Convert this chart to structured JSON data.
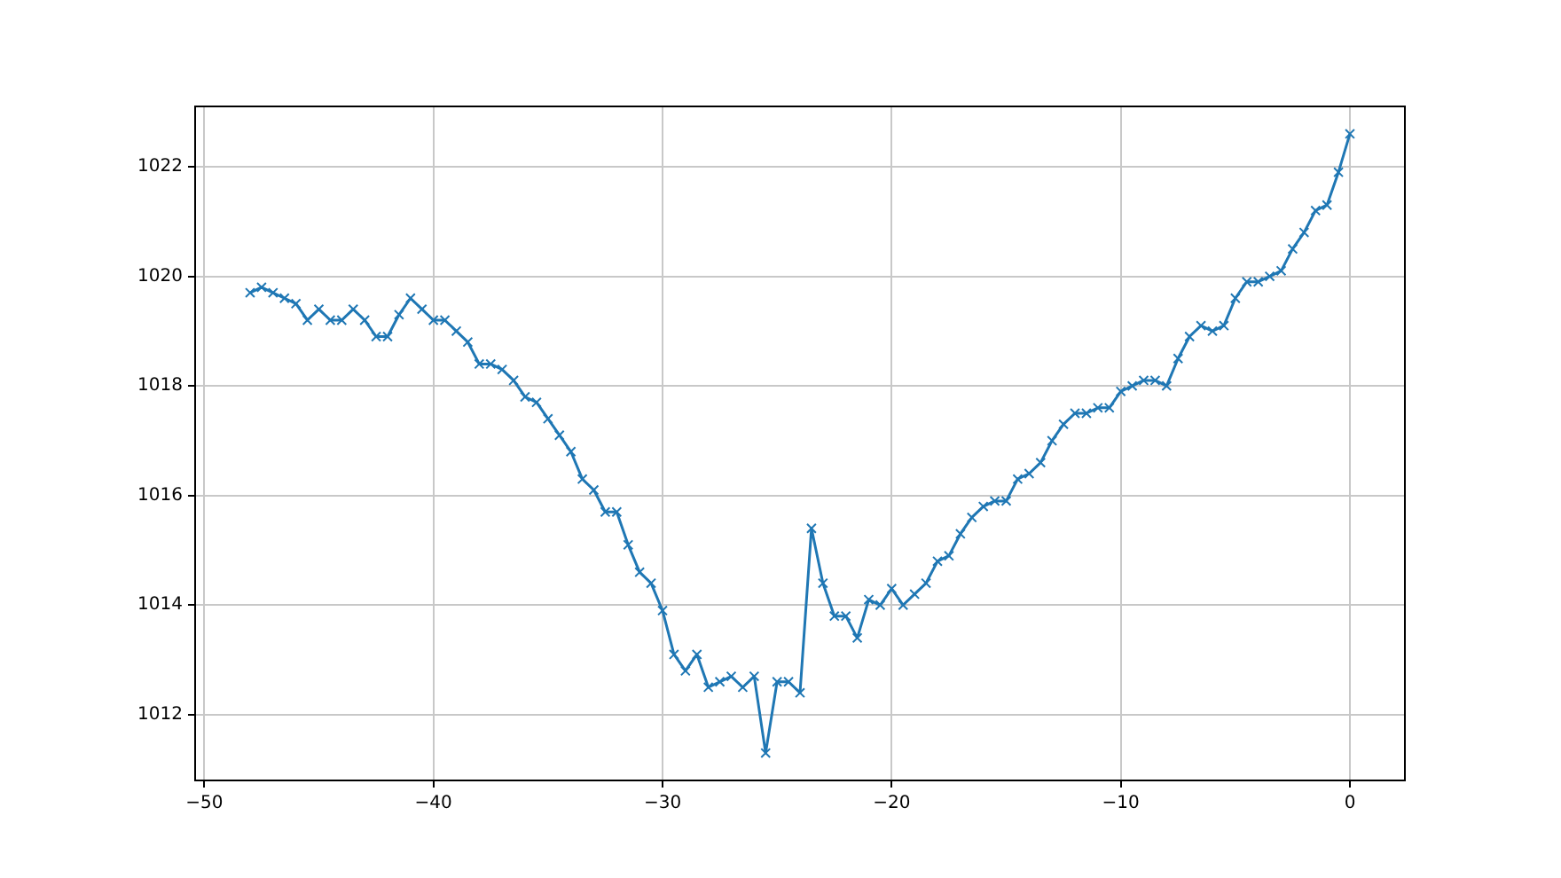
{
  "chart_data": {
    "type": "line",
    "x": [
      -48,
      -47.5,
      -47,
      -46.5,
      -46,
      -45.5,
      -45,
      -44.5,
      -44,
      -43.5,
      -43,
      -42.5,
      -42,
      -41.5,
      -41,
      -40.5,
      -40,
      -39.5,
      -39,
      -38.5,
      -38,
      -37.5,
      -37,
      -36.5,
      -36,
      -35.5,
      -35,
      -34.5,
      -34,
      -33.5,
      -33,
      -32.5,
      -32,
      -31.5,
      -31,
      -30.5,
      -30,
      -29.5,
      -29,
      -28.5,
      -28,
      -27.5,
      -27,
      -26.5,
      -26,
      -25.5,
      -25,
      -24.5,
      -24,
      -23.5,
      -23,
      -22.5,
      -22,
      -21.5,
      -21,
      -20.5,
      -20,
      -19.5,
      -19,
      -18.5,
      -18,
      -17.5,
      -17,
      -16.5,
      -16,
      -15.5,
      -15,
      -14.5,
      -14,
      -13.5,
      -13,
      -12.5,
      -12,
      -11.5,
      -11,
      -10.5,
      -10,
      -9.5,
      -9,
      -8.5,
      -8,
      -7.5,
      -7,
      -6.5,
      -6,
      -5.5,
      -5,
      -4.5,
      -4,
      -3.5,
      -3,
      -2.5,
      -2,
      -1.5,
      -1,
      -0.5,
      0
    ],
    "series": [
      {
        "color": "#1f77b4",
        "values": [
          1019.7,
          1019.8,
          1019.7,
          1019.6,
          1019.5,
          1019.2,
          1019.4,
          1019.2,
          1019.2,
          1019.4,
          1019.2,
          1018.9,
          1018.9,
          1019.3,
          1019.6,
          1019.4,
          1019.2,
          1019.2,
          1019.0,
          1018.8,
          1018.4,
          1018.4,
          1018.3,
          1018.1,
          1017.8,
          1017.7,
          1017.4,
          1017.1,
          1016.8,
          1016.3,
          1016.1,
          1015.7,
          1015.7,
          1015.1,
          1014.6,
          1014.4,
          1013.9,
          1013.1,
          1012.8,
          1013.1,
          1012.5,
          1012.6,
          1012.7,
          1012.5,
          1012.7,
          1011.3,
          1012.6,
          1012.6,
          1012.4,
          1015.4,
          1014.4,
          1013.8,
          1013.8,
          1013.4,
          1014.1,
          1014.0,
          1014.3,
          1014.0,
          1014.2,
          1014.4,
          1014.8,
          1014.9,
          1015.3,
          1015.6,
          1015.8,
          1015.9,
          1015.9,
          1016.3,
          1016.4,
          1016.6,
          1017.0,
          1017.3,
          1017.5,
          1017.5,
          1017.6,
          1017.6,
          1017.9,
          1018.0,
          1018.1,
          1018.1,
          1018.0,
          1018.5,
          1018.9,
          1019.1,
          1019.0,
          1019.1,
          1019.6,
          1019.9,
          1019.9,
          1020.0,
          1020.1,
          1020.5,
          1020.8,
          1021.2,
          1021.3,
          1021.9,
          1022.6
        ]
      }
    ],
    "xlim": [
      -50.4,
      2.4
    ],
    "ylim": [
      1010.8,
      1023.1
    ],
    "xticks": [
      {
        "value": -50,
        "label": "−50"
      },
      {
        "value": -40,
        "label": "−40"
      },
      {
        "value": -30,
        "label": "−30"
      },
      {
        "value": -20,
        "label": "−20"
      },
      {
        "value": -10,
        "label": "−10"
      },
      0
    ],
    "yticks": [
      1012,
      1014,
      1016,
      1018,
      1020,
      1022
    ],
    "grid": true,
    "marker": "cross",
    "line_style": "solid"
  }
}
